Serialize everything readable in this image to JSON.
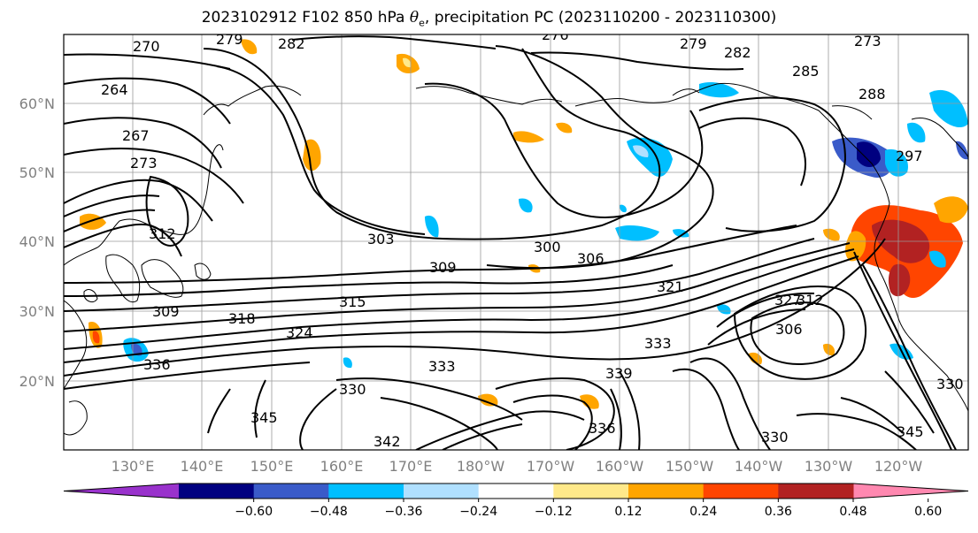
{
  "title": {
    "prefix": "2023102912 F102 850 hPa ",
    "theta": "θ",
    "sub": "e",
    "suffix": ", precipitation PC (2023110200 - 2023110300)"
  },
  "lat_labels": [
    "60°N",
    "50°N",
    "40°N",
    "30°N",
    "20°N"
  ],
  "lon_labels": [
    "130°E",
    "140°E",
    "150°E",
    "160°E",
    "170°E",
    "180°W",
    "170°W",
    "160°W",
    "150°W",
    "140°W",
    "130°W",
    "120°W"
  ],
  "contour_labels": [
    "264",
    "267",
    "273",
    "270",
    "279",
    "282",
    "276",
    "279",
    "282",
    "285",
    "273",
    "288",
    "297",
    "303",
    "300",
    "306",
    "309",
    "309",
    "312",
    "315",
    "318",
    "321",
    "324",
    "327",
    "330",
    "330",
    "333",
    "333",
    "336",
    "336",
    "339",
    "342",
    "345",
    "345",
    "306",
    "312",
    "330"
  ],
  "colorbar": {
    "ticks": [
      "−0.60",
      "−0.48",
      "−0.36",
      "−0.24",
      "−0.12",
      "0.12",
      "0.24",
      "0.36",
      "0.48",
      "0.60"
    ],
    "colors": [
      "#9932cc",
      "#000080",
      "#3a5bc9",
      "#00bfff",
      "#b0e0ff",
      "#ffffff",
      "#ffe98a",
      "#ffa500",
      "#ff4500",
      "#b22222",
      "#ff88b0"
    ]
  }
}
